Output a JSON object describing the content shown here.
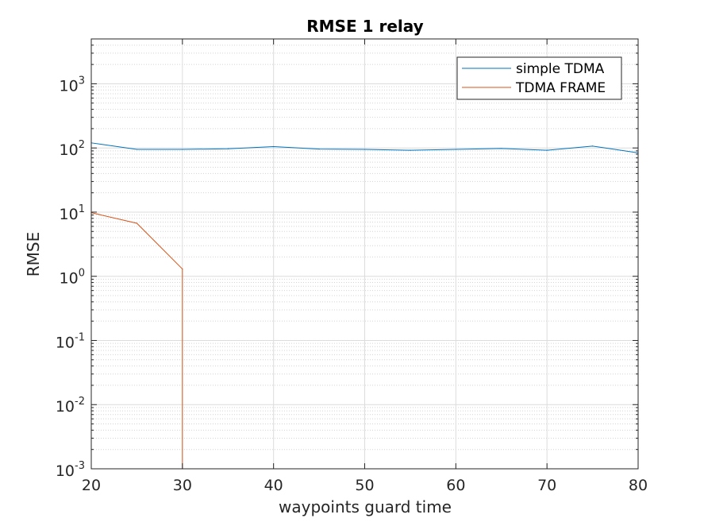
{
  "chart_data": {
    "type": "line",
    "title": "RMSE 1 relay",
    "xlabel": "waypoints guard time",
    "ylabel": "RMSE",
    "xlim": [
      20,
      80
    ],
    "ylim": [
      0.001,
      5000
    ],
    "yscale": "log",
    "grid": true,
    "minor_grid": true,
    "legend_position": "top-right",
    "x_ticks": [
      20,
      30,
      40,
      50,
      60,
      70,
      80
    ],
    "x_tick_labels": [
      "20",
      "30",
      "40",
      "50",
      "60",
      "70",
      "80"
    ],
    "y_ticks": [
      0.001,
      0.01,
      0.1,
      1,
      10,
      100,
      1000
    ],
    "y_tick_labels": [
      {
        "base": "10",
        "exp": "-3"
      },
      {
        "base": "10",
        "exp": "-2"
      },
      {
        "base": "10",
        "exp": "-1"
      },
      {
        "base": "10",
        "exp": "0"
      },
      {
        "base": "10",
        "exp": "1"
      },
      {
        "base": "10",
        "exp": "2"
      },
      {
        "base": "10",
        "exp": "3"
      }
    ],
    "series": [
      {
        "name": "simple TDMA",
        "color": "#0072bd",
        "x": [
          20,
          25,
          30,
          35,
          40,
          45,
          50,
          55,
          60,
          65,
          70,
          75,
          80
        ],
        "y": [
          120,
          95,
          95,
          97,
          105,
          96,
          95,
          92,
          95,
          98,
          92,
          107,
          84
        ]
      },
      {
        "name": "TDMA FRAME",
        "color": "#d95319",
        "x": [
          20,
          25,
          30,
          30
        ],
        "y": [
          9.8,
          6.7,
          1.3,
          0.001
        ]
      }
    ]
  }
}
